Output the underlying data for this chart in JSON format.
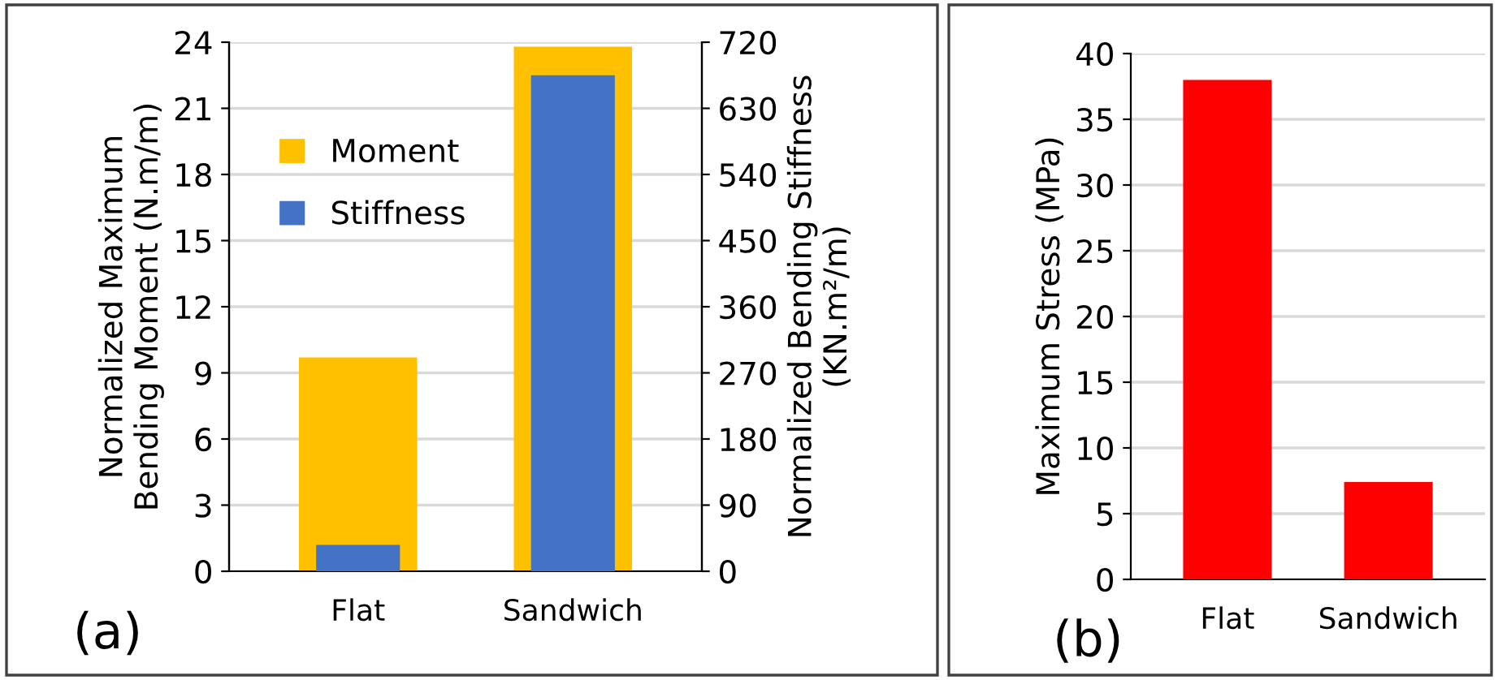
{
  "chart_data": [
    {
      "type": "bar",
      "categories": [
        "Flat",
        "Sandwich"
      ],
      "ylabel": "Normalized Maximum\nBending Moment (N.m/m)",
      "y2label": "Normalized Bending Stiffness\n(KN.m²/m)",
      "series": [
        {
          "name": "Moment",
          "color": "#ffc000",
          "values": [
            9.7,
            23.8
          ]
        },
        {
          "name": "Stiffness",
          "color": "#4472c4",
          "values": [
            36,
            675
          ],
          "axis": "y2"
        }
      ],
      "ylim": [
        0,
        24
      ],
      "yticks": [
        0,
        3,
        6,
        9,
        12,
        15,
        18,
        21,
        24
      ],
      "y2lim": [
        0,
        720
      ],
      "y2ticks": [
        0,
        90,
        180,
        270,
        360,
        450,
        540,
        630,
        720
      ],
      "grid": "y",
      "legend": "top left",
      "annotations": [
        "(a)"
      ]
    },
    {
      "type": "bar",
      "categories": [
        "Flat",
        "Sandwich"
      ],
      "ylabel": "Maximum Stress (MPa)",
      "series": [
        {
          "color": "#ff0000",
          "values": [
            38,
            7.4
          ]
        }
      ],
      "ylim": [
        0,
        40
      ],
      "yticks": [
        0,
        5,
        10,
        15,
        20,
        25,
        30,
        35,
        40
      ],
      "grid": "y",
      "legend": false,
      "annotations": [
        "(b)"
      ]
    }
  ]
}
